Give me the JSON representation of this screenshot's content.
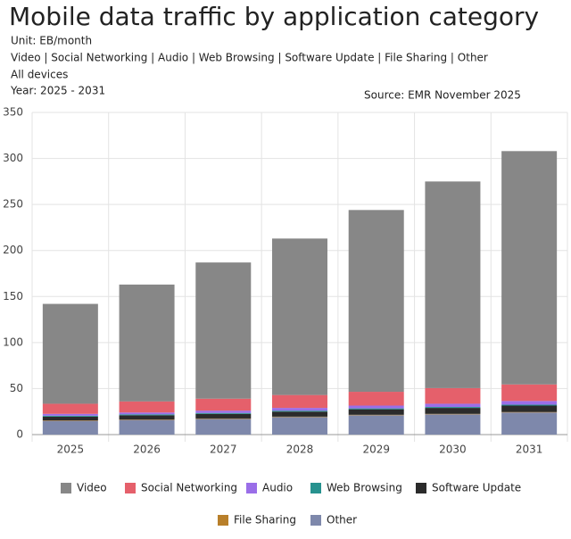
{
  "chart_data": {
    "type": "stacked_bar",
    "title": "Mobile data traffic by application category",
    "subtitle_lines": [
      "Unit: EB/month",
      "Video | Social Networking | Audio | Web Browsing | Software Update | File Sharing | Other",
      "All devices",
      "Year: 2025 - 2031"
    ],
    "source": "Source: EMR November 2025",
    "categories": [
      "2025",
      "2026",
      "2027",
      "2028",
      "2029",
      "2030",
      "2031"
    ],
    "series": [
      {
        "name": "Video",
        "color": "#878787",
        "values": [
          108.5,
          127,
          148,
          170,
          197.5,
          224.5,
          253.5
        ]
      },
      {
        "name": "Social Networking",
        "color": "#e5606b",
        "values": [
          11,
          12,
          13,
          14,
          15,
          17,
          18
        ]
      },
      {
        "name": "Audio",
        "color": "#9a6ee8",
        "values": [
          2,
          2,
          2.5,
          3,
          3,
          3.5,
          4
        ]
      },
      {
        "name": "Web Browsing",
        "color": "#27928f",
        "values": [
          1,
          1,
          1,
          1,
          1,
          1,
          1
        ]
      },
      {
        "name": "Software Update",
        "color": "#2b2b2b",
        "values": [
          4,
          4.5,
          5,
          5.5,
          6,
          6.5,
          7
        ]
      },
      {
        "name": "File Sharing",
        "color": "#b87f2a",
        "values": [
          0.5,
          0.5,
          0.5,
          0.5,
          0.5,
          0.5,
          0.5
        ]
      },
      {
        "name": "Other",
        "color": "#7e88ab",
        "values": [
          15,
          16,
          17,
          19,
          21,
          22,
          24
        ]
      }
    ],
    "ylim": [
      0,
      350
    ],
    "yticks": [
      0,
      50,
      100,
      150,
      200,
      250,
      300,
      350
    ],
    "grid": true
  }
}
